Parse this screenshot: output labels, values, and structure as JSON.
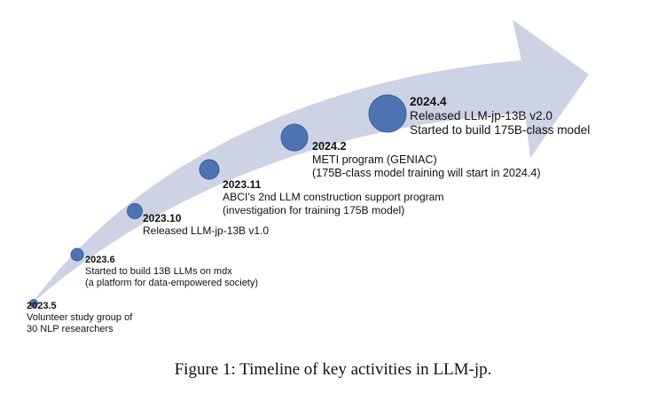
{
  "colors": {
    "arrow": "#cdd3e4",
    "dot": "#4e73b2",
    "dot_stroke": "#3f5f98"
  },
  "milestones": [
    {
      "date": "2023.5",
      "lines": [
        "Volunteer study group of",
        "30 NLP researchers"
      ]
    },
    {
      "date": "2023.6",
      "lines": [
        "Started to build 13B LLMs on mdx",
        "(a platform for data-empowered society)"
      ]
    },
    {
      "date": "2023.10",
      "lines": [
        "Released LLM-jp-13B v1.0"
      ]
    },
    {
      "date": "2023.11",
      "lines": [
        "ABCI's 2nd LLM construction support program",
        "(investigation for training 175B model)"
      ]
    },
    {
      "date": "2024.2",
      "lines": [
        "METI program (GENIAC)",
        "(175B-class model training will start in 2024.4)"
      ]
    },
    {
      "date": "2024.4",
      "lines": [
        "Released LLM-jp-13B v2.0",
        "Started to build 175B-class model"
      ]
    }
  ],
  "caption": "Figure 1: Timeline of key activities in LLM-jp."
}
